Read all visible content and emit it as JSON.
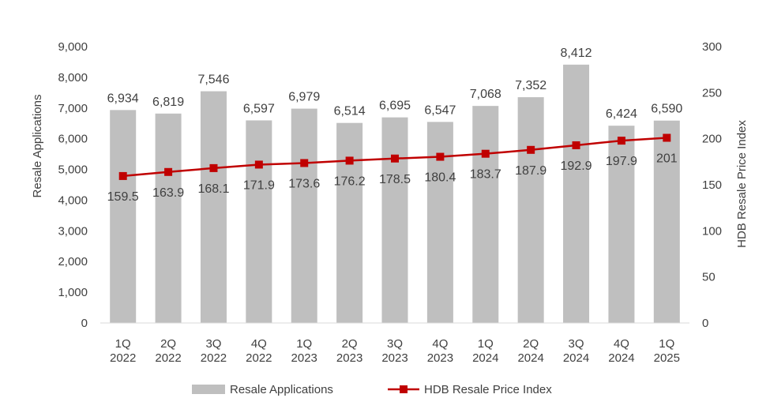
{
  "chart_data": {
    "type": "bar+line",
    "categories": [
      [
        "1Q",
        "2022"
      ],
      [
        "2Q",
        "2022"
      ],
      [
        "3Q",
        "2022"
      ],
      [
        "4Q",
        "2022"
      ],
      [
        "1Q",
        "2023"
      ],
      [
        "2Q",
        "2023"
      ],
      [
        "3Q",
        "2023"
      ],
      [
        "4Q",
        "2023"
      ],
      [
        "1Q",
        "2024"
      ],
      [
        "2Q",
        "2024"
      ],
      [
        "3Q",
        "2024"
      ],
      [
        "4Q",
        "2024"
      ],
      [
        "1Q",
        "2025"
      ]
    ],
    "series": [
      {
        "name": "Resale Applications",
        "type": "bar",
        "axis": "left",
        "color": "#bfbfbf",
        "values": [
          6934,
          6819,
          7546,
          6597,
          6979,
          6514,
          6695,
          6547,
          7068,
          7352,
          8412,
          6424,
          6590
        ],
        "labels": [
          "6,934",
          "6,819",
          "7,546",
          "6,597",
          "6,979",
          "6,514",
          "6,695",
          "6,547",
          "7,068",
          "7,352",
          "8,412",
          "6,424",
          "6,590"
        ]
      },
      {
        "name": "HDB Resale Price Index",
        "type": "line",
        "axis": "right",
        "color": "#c00000",
        "marker": "square",
        "values": [
          159.5,
          163.9,
          168.1,
          171.9,
          173.6,
          176.2,
          178.5,
          180.4,
          183.7,
          187.9,
          192.9,
          197.9,
          201
        ],
        "labels": [
          "159.5",
          "163.9",
          "168.1",
          "171.9",
          "173.6",
          "176.2",
          "178.5",
          "180.4",
          "183.7",
          "187.9",
          "192.9",
          "197.9",
          "201"
        ]
      }
    ],
    "ylabel_left": "Resale Applications",
    "ylabel_right": "HDB Resale Price Index",
    "ylim_left": [
      0,
      9000
    ],
    "ylim_right": [
      0,
      300
    ],
    "yticks_left": [
      "0",
      "1,000",
      "2,000",
      "3,000",
      "4,000",
      "5,000",
      "6,000",
      "7,000",
      "8,000",
      "9,000"
    ],
    "yticks_right": [
      "0",
      "50",
      "100",
      "150",
      "200",
      "250",
      "300"
    ],
    "grid": false,
    "legend_position": "bottom"
  }
}
